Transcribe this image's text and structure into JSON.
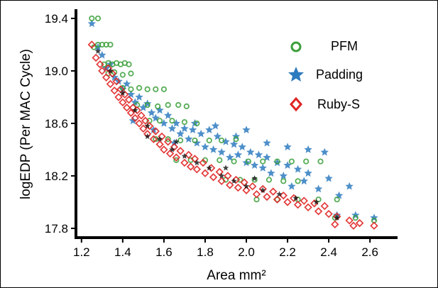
{
  "chart_data": {
    "type": "scatter",
    "xlabel": "Area mm²",
    "ylabel": "logEDP (Per MAC Cycle)",
    "xlim": [
      1.18,
      2.72
    ],
    "ylim": [
      17.74,
      19.47
    ],
    "xticks": [
      1.2,
      1.4,
      1.6,
      1.8,
      2.0,
      2.2,
      2.4,
      2.6
    ],
    "yticks": [
      17.8,
      18.2,
      18.6,
      19.0,
      19.4
    ],
    "xtick_labels": [
      "1.2",
      "1.4",
      "1.6",
      "1.8",
      "2.0",
      "2.2",
      "2.4",
      "2.6"
    ],
    "ytick_labels": [
      "17.8",
      "18.2",
      "18.6",
      "19.0",
      "19.4"
    ],
    "legend_position": "top-right",
    "grid": false,
    "series": [
      {
        "name": "PFM",
        "marker": "circle-open",
        "color": "#3a9f3a",
        "points": [
          [
            1.25,
            19.4
          ],
          [
            1.28,
            19.4
          ],
          [
            1.26,
            19.18
          ],
          [
            1.28,
            19.2
          ],
          [
            1.3,
            19.2
          ],
          [
            1.32,
            19.2
          ],
          [
            1.34,
            19.2
          ],
          [
            1.31,
            19.05
          ],
          [
            1.33,
            19.06
          ],
          [
            1.35,
            19.05
          ],
          [
            1.37,
            19.06
          ],
          [
            1.39,
            19.05
          ],
          [
            1.41,
            19.06
          ],
          [
            1.43,
            19.05
          ],
          [
            1.33,
            18.98
          ],
          [
            1.36,
            18.99
          ],
          [
            1.4,
            18.97
          ],
          [
            1.44,
            18.98
          ],
          [
            1.4,
            18.87
          ],
          [
            1.44,
            18.86
          ],
          [
            1.48,
            18.87
          ],
          [
            1.52,
            18.86
          ],
          [
            1.56,
            18.86
          ],
          [
            1.6,
            18.86
          ],
          [
            1.47,
            18.74
          ],
          [
            1.52,
            18.74
          ],
          [
            1.57,
            18.73
          ],
          [
            1.62,
            18.74
          ],
          [
            1.67,
            18.74
          ],
          [
            1.71,
            18.73
          ],
          [
            1.53,
            18.62
          ],
          [
            1.58,
            18.62
          ],
          [
            1.64,
            18.62
          ],
          [
            1.7,
            18.61
          ],
          [
            1.76,
            18.6
          ],
          [
            1.56,
            18.48
          ],
          [
            1.62,
            18.48
          ],
          [
            1.68,
            18.47
          ],
          [
            1.75,
            18.47
          ],
          [
            1.82,
            18.47
          ],
          [
            1.88,
            18.47
          ],
          [
            1.95,
            18.48
          ],
          [
            1.66,
            18.32
          ],
          [
            1.73,
            18.32
          ],
          [
            1.8,
            18.32
          ],
          [
            1.87,
            18.32
          ],
          [
            1.94,
            18.31
          ],
          [
            2.01,
            18.31
          ],
          [
            2.08,
            18.31
          ],
          [
            2.15,
            18.31
          ],
          [
            2.22,
            18.31
          ],
          [
            2.29,
            18.31
          ],
          [
            2.36,
            18.31
          ],
          [
            1.9,
            18.17
          ],
          [
            1.97,
            18.17
          ],
          [
            2.04,
            18.17
          ],
          [
            2.11,
            18.17
          ],
          [
            2.18,
            18.16
          ],
          [
            2.25,
            18.16
          ],
          [
            2.05,
            18.02
          ],
          [
            2.15,
            18.02
          ],
          [
            2.25,
            18.02
          ],
          [
            2.35,
            18.02
          ],
          [
            2.44,
            18.02
          ],
          [
            2.43,
            17.88
          ],
          [
            2.53,
            17.88
          ],
          [
            2.62,
            17.86
          ]
        ]
      },
      {
        "name": "Padding",
        "marker": "star",
        "color": "#2e7bbf",
        "points": [
          [
            1.25,
            19.36
          ],
          [
            1.28,
            19.18
          ],
          [
            1.3,
            19.12
          ],
          [
            1.32,
            19.02
          ],
          [
            1.34,
            19.05
          ],
          [
            1.36,
            18.95
          ],
          [
            1.38,
            18.92
          ],
          [
            1.4,
            18.86
          ],
          [
            1.42,
            18.9
          ],
          [
            1.44,
            18.82
          ],
          [
            1.46,
            18.76
          ],
          [
            1.48,
            18.8
          ],
          [
            1.5,
            18.72
          ],
          [
            1.52,
            18.75
          ],
          [
            1.54,
            18.68
          ],
          [
            1.56,
            18.64
          ],
          [
            1.58,
            18.7
          ],
          [
            1.6,
            18.6
          ],
          [
            1.62,
            18.66
          ],
          [
            1.64,
            18.56
          ],
          [
            1.66,
            18.6
          ],
          [
            1.68,
            18.52
          ],
          [
            1.7,
            18.56
          ],
          [
            1.72,
            18.48
          ],
          [
            1.74,
            18.55
          ],
          [
            1.76,
            18.45
          ],
          [
            1.78,
            18.52
          ],
          [
            1.8,
            18.42
          ],
          [
            1.82,
            18.55
          ],
          [
            1.84,
            18.4
          ],
          [
            1.86,
            18.5
          ],
          [
            1.88,
            18.38
          ],
          [
            1.9,
            18.46
          ],
          [
            1.92,
            18.34
          ],
          [
            1.94,
            18.44
          ],
          [
            1.96,
            18.36
          ],
          [
            1.98,
            18.42
          ],
          [
            2.0,
            18.3
          ],
          [
            2.02,
            18.38
          ],
          [
            2.04,
            18.28
          ],
          [
            2.06,
            18.36
          ],
          [
            2.08,
            18.26
          ],
          [
            2.1,
            18.34
          ],
          [
            2.12,
            18.22
          ],
          [
            2.15,
            18.3
          ],
          [
            2.18,
            18.2
          ],
          [
            2.2,
            18.28
          ],
          [
            2.22,
            18.12
          ],
          [
            2.25,
            18.25
          ],
          [
            2.28,
            18.16
          ],
          [
            2.3,
            18.22
          ],
          [
            2.35,
            18.1
          ],
          [
            2.4,
            18.18
          ],
          [
            2.45,
            18.05
          ],
          [
            2.5,
            18.12
          ],
          [
            1.45,
            18.62
          ],
          [
            1.55,
            18.55
          ],
          [
            1.65,
            18.45
          ],
          [
            1.75,
            18.6
          ],
          [
            1.85,
            18.58
          ],
          [
            1.95,
            18.5
          ],
          [
            2.0,
            18.55
          ],
          [
            2.1,
            18.45
          ],
          [
            2.2,
            18.42
          ],
          [
            2.3,
            18.4
          ],
          [
            2.38,
            18.38
          ],
          [
            2.44,
            17.9
          ],
          [
            2.53,
            17.9
          ],
          [
            2.62,
            17.88
          ]
        ]
      },
      {
        "name": "Ruby-S",
        "marker": "diamond-open",
        "color": "#e02424",
        "points": [
          [
            1.25,
            19.2
          ],
          [
            1.27,
            19.1
          ],
          [
            1.29,
            19.05
          ],
          [
            1.3,
            19.0
          ],
          [
            1.32,
            18.95
          ],
          [
            1.34,
            18.9
          ],
          [
            1.36,
            18.85
          ],
          [
            1.38,
            18.8
          ],
          [
            1.4,
            18.76
          ],
          [
            1.42,
            18.72
          ],
          [
            1.44,
            18.68
          ],
          [
            1.46,
            18.64
          ],
          [
            1.48,
            18.6
          ],
          [
            1.5,
            18.56
          ],
          [
            1.52,
            18.52
          ],
          [
            1.55,
            18.48
          ],
          [
            1.58,
            18.44
          ],
          [
            1.6,
            18.4
          ],
          [
            1.63,
            18.37
          ],
          [
            1.66,
            18.34
          ],
          [
            1.7,
            18.3
          ],
          [
            1.73,
            18.27
          ],
          [
            1.76,
            18.25
          ],
          [
            1.8,
            18.22
          ],
          [
            1.84,
            18.19
          ],
          [
            1.88,
            18.16
          ],
          [
            1.92,
            18.13
          ],
          [
            1.96,
            18.11
          ],
          [
            2.0,
            18.09
          ],
          [
            2.05,
            18.06
          ],
          [
            2.1,
            18.04
          ],
          [
            2.15,
            18.02
          ],
          [
            2.2,
            18.0
          ],
          [
            2.25,
            17.98
          ],
          [
            2.3,
            17.96
          ],
          [
            2.35,
            17.93
          ],
          [
            2.4,
            17.91
          ],
          [
            2.44,
            17.89
          ],
          [
            2.5,
            17.86
          ],
          [
            2.55,
            17.84
          ],
          [
            2.62,
            17.82
          ],
          [
            1.33,
            19.02
          ],
          [
            1.35,
            18.98
          ],
          [
            1.37,
            18.92
          ],
          [
            1.39,
            18.86
          ],
          [
            1.41,
            18.82
          ],
          [
            1.43,
            18.78
          ],
          [
            1.45,
            18.72
          ],
          [
            1.47,
            18.7
          ],
          [
            1.49,
            18.66
          ],
          [
            1.51,
            18.62
          ],
          [
            1.53,
            18.58
          ],
          [
            1.56,
            18.54
          ],
          [
            1.59,
            18.5
          ],
          [
            1.62,
            18.46
          ],
          [
            1.65,
            18.42
          ],
          [
            1.68,
            18.39
          ],
          [
            1.72,
            18.36
          ],
          [
            1.75,
            18.33
          ],
          [
            1.79,
            18.3
          ],
          [
            1.83,
            18.26
          ],
          [
            1.87,
            18.23
          ],
          [
            1.91,
            18.2
          ],
          [
            1.95,
            18.17
          ],
          [
            1.99,
            18.15
          ],
          [
            2.03,
            18.12
          ],
          [
            2.08,
            18.1
          ],
          [
            2.13,
            18.08
          ],
          [
            2.18,
            18.05
          ],
          [
            2.23,
            18.03
          ],
          [
            2.28,
            18.01
          ],
          [
            2.33,
            17.99
          ],
          [
            2.38,
            17.97
          ],
          [
            2.43,
            17.83
          ],
          [
            2.52,
            17.82
          ]
        ]
      }
    ],
    "overlay_marks": {
      "color": "#111111",
      "points": [
        [
          1.28,
          19.15
        ],
        [
          1.34,
          19.0
        ],
        [
          1.4,
          18.83
        ],
        [
          1.46,
          18.7
        ],
        [
          1.52,
          18.58
        ],
        [
          1.58,
          18.48
        ],
        [
          1.64,
          18.4
        ],
        [
          1.7,
          18.35
        ],
        [
          1.76,
          18.3
        ],
        [
          1.82,
          18.26
        ],
        [
          1.88,
          18.2
        ],
        [
          1.94,
          18.16
        ],
        [
          2.0,
          18.12
        ],
        [
          2.08,
          18.09
        ],
        [
          2.16,
          18.06
        ],
        [
          2.24,
          18.03
        ],
        [
          2.34,
          18.0
        ],
        [
          2.44,
          17.88
        ],
        [
          1.9,
          18.26
        ],
        [
          2.04,
          18.18
        ],
        [
          1.66,
          18.46
        ],
        [
          1.52,
          18.5
        ]
      ]
    }
  }
}
